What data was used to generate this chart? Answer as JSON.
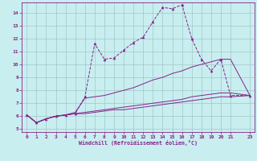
{
  "xlabel": "Windchill (Refroidissement éolien,°C)",
  "background_color": "#c8eef0",
  "grid_color": "#a0c8c8",
  "line_color": "#882288",
  "xlim": [
    -0.5,
    23.5
  ],
  "ylim": [
    4.8,
    14.8
  ],
  "xticks": [
    0,
    1,
    2,
    3,
    4,
    5,
    6,
    7,
    8,
    9,
    10,
    11,
    12,
    13,
    14,
    15,
    16,
    17,
    18,
    19,
    20,
    21,
    23
  ],
  "yticks": [
    5,
    6,
    7,
    8,
    9,
    10,
    11,
    12,
    13,
    14
  ],
  "line1_x": [
    0,
    1,
    2,
    3,
    4,
    5,
    6,
    7,
    8,
    9,
    10,
    11,
    12,
    13,
    14,
    15,
    16,
    17,
    18,
    19,
    20,
    21,
    23
  ],
  "line1_y": [
    6.1,
    5.5,
    5.8,
    6.0,
    6.1,
    6.2,
    7.5,
    11.6,
    10.4,
    10.5,
    11.1,
    11.7,
    12.1,
    13.3,
    14.4,
    14.3,
    14.6,
    12.0,
    10.4,
    9.5,
    10.4,
    7.6,
    7.6
  ],
  "line2_x": [
    0,
    1,
    2,
    3,
    4,
    5,
    6,
    7,
    8,
    9,
    10,
    11,
    12,
    13,
    14,
    15,
    16,
    17,
    18,
    19,
    20,
    21,
    23
  ],
  "line2_y": [
    6.1,
    5.5,
    5.8,
    6.0,
    6.1,
    6.3,
    7.4,
    7.5,
    7.6,
    7.8,
    8.0,
    8.2,
    8.5,
    8.8,
    9.0,
    9.3,
    9.5,
    9.8,
    10.0,
    10.2,
    10.4,
    10.4,
    7.6
  ],
  "line3_x": [
    0,
    1,
    2,
    3,
    4,
    5,
    6,
    7,
    8,
    9,
    10,
    11,
    12,
    13,
    14,
    15,
    16,
    17,
    18,
    19,
    20,
    21,
    23
  ],
  "line3_y": [
    6.1,
    5.5,
    5.8,
    6.0,
    6.1,
    6.2,
    6.3,
    6.4,
    6.5,
    6.6,
    6.7,
    6.8,
    6.9,
    7.0,
    7.1,
    7.2,
    7.3,
    7.5,
    7.6,
    7.7,
    7.8,
    7.8,
    7.6
  ],
  "line4_x": [
    0,
    1,
    2,
    3,
    4,
    5,
    6,
    7,
    8,
    9,
    10,
    11,
    12,
    13,
    14,
    15,
    16,
    17,
    18,
    19,
    20,
    21,
    23
  ],
  "line4_y": [
    6.1,
    5.5,
    5.8,
    6.0,
    6.1,
    6.2,
    6.2,
    6.3,
    6.4,
    6.5,
    6.5,
    6.6,
    6.7,
    6.8,
    6.9,
    7.0,
    7.1,
    7.2,
    7.3,
    7.4,
    7.5,
    7.5,
    7.6
  ]
}
